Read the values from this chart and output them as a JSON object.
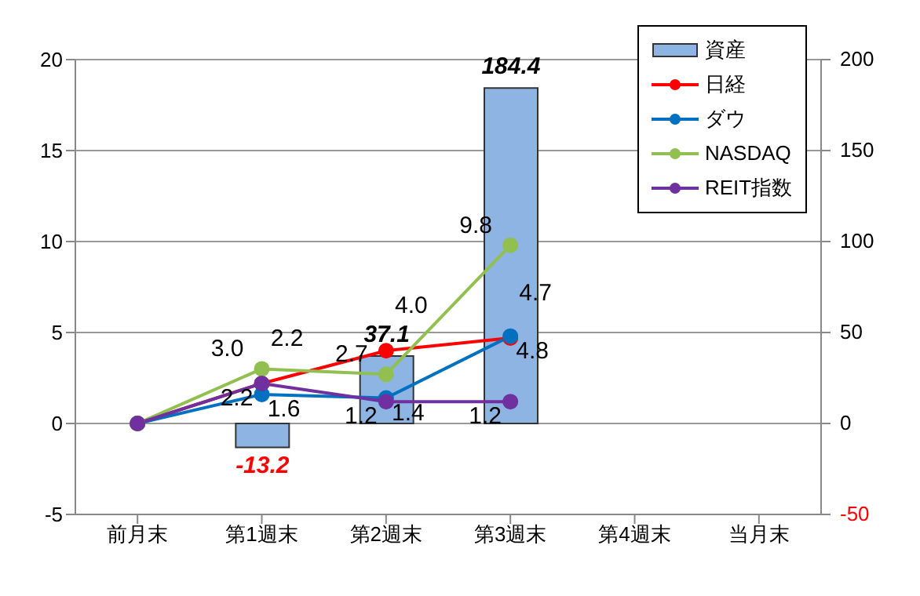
{
  "chart_data": {
    "type": "bar",
    "categories": [
      "前月末",
      "第1週末",
      "第2週末",
      "第3週末",
      "第4週末",
      "当月末"
    ],
    "series": [
      {
        "name": "資産",
        "type": "bar",
        "axis": "y2",
        "color": "#8db4e2",
        "values": [
          null,
          -13.2,
          37.1,
          184.4,
          null,
          null
        ],
        "value_labels": [
          null,
          "-13.2",
          "37.1",
          "184.4",
          null,
          null
        ]
      },
      {
        "name": "日経",
        "type": "line",
        "color": "#ff0000",
        "values": [
          0,
          2.2,
          4.0,
          4.7,
          null,
          null
        ],
        "value_labels": [
          null,
          "2.2",
          "4.0",
          "4.7",
          null,
          null
        ]
      },
      {
        "name": "ダウ",
        "type": "line",
        "color": "#0070c0",
        "values": [
          0,
          1.6,
          1.4,
          4.8,
          null,
          null
        ],
        "value_labels": [
          null,
          "1.6",
          "1.4",
          "4.8",
          null,
          null
        ]
      },
      {
        "name": "NASDAQ",
        "type": "line",
        "color": "#92c050",
        "values": [
          0,
          3.0,
          2.7,
          9.8,
          null,
          null
        ],
        "value_labels": [
          null,
          "3.0",
          "2.7",
          "9.8",
          null,
          null
        ]
      },
      {
        "name": "REIT指数",
        "type": "line",
        "color": "#7030a0",
        "values": [
          0,
          2.2,
          1.2,
          1.2,
          null,
          null
        ],
        "value_labels": [
          null,
          "2.2",
          "1.2",
          "1.2",
          null,
          null
        ]
      }
    ],
    "ylim": [
      -5,
      20
    ],
    "yticks": [
      -5,
      0,
      5,
      10,
      15,
      20
    ],
    "y2lim": [
      -50,
      200
    ],
    "y2ticks": [
      -50,
      0,
      50,
      100,
      150,
      200
    ],
    "grid": "y",
    "legend": "top right",
    "marker": "circle"
  }
}
